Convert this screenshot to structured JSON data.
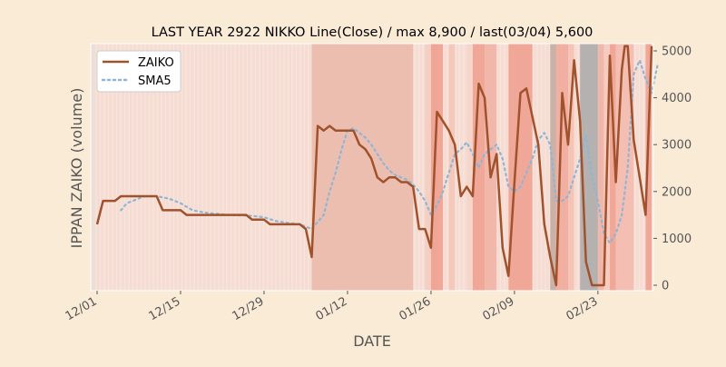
{
  "chart_data": {
    "type": "line",
    "title": "LAST YEAR 2922 NIKKO Line(Close) / max 8,900 / last(03/04) 5,600",
    "xlabel": "DATE",
    "ylabel": "IPPAN ZAIKO (volume)",
    "x_start": "12/01",
    "x_end": "03/04",
    "x_ticks": [
      {
        "label": "12/01",
        "day": 0
      },
      {
        "label": "12/15",
        "day": 14
      },
      {
        "label": "12/29",
        "day": 28
      },
      {
        "label": "01/12",
        "day": 42
      },
      {
        "label": "01/26",
        "day": 56
      },
      {
        "label": "02/09",
        "day": 70
      },
      {
        "label": "02/23",
        "day": 84
      }
    ],
    "ylim": [
      -100,
      5100
    ],
    "y_ticks": [
      0,
      1000,
      2000,
      3000,
      4000,
      5000
    ],
    "y_axis_side": "right",
    "grid": false,
    "legend_position": "top-left",
    "background_bands": true,
    "series": [
      {
        "name": "ZAIKO",
        "style": "solid",
        "color": "#a0522d",
        "points": [
          [
            0,
            1300
          ],
          [
            1,
            1800
          ],
          [
            3,
            1800
          ],
          [
            4,
            1900
          ],
          [
            10,
            1900
          ],
          [
            11,
            1600
          ],
          [
            14,
            1600
          ],
          [
            15,
            1500
          ],
          [
            25,
            1500
          ],
          [
            26,
            1400
          ],
          [
            28,
            1400
          ],
          [
            29,
            1300
          ],
          [
            34,
            1300
          ],
          [
            35,
            1200
          ],
          [
            36,
            600
          ],
          [
            37,
            3400
          ],
          [
            38,
            3300
          ],
          [
            39,
            3400
          ],
          [
            40,
            3300
          ],
          [
            43,
            3300
          ],
          [
            44,
            3000
          ],
          [
            45,
            2900
          ],
          [
            46,
            2700
          ],
          [
            47,
            2300
          ],
          [
            48,
            2200
          ],
          [
            49,
            2300
          ],
          [
            50,
            2300
          ],
          [
            51,
            2200
          ],
          [
            52,
            2200
          ],
          [
            53,
            2100
          ],
          [
            54,
            1200
          ],
          [
            55,
            1200
          ],
          [
            56,
            800
          ],
          [
            57,
            3700
          ],
          [
            58,
            3500
          ],
          [
            59,
            3300
          ],
          [
            60,
            3000
          ],
          [
            61,
            1900
          ],
          [
            62,
            2100
          ],
          [
            63,
            1900
          ],
          [
            64,
            4300
          ],
          [
            65,
            4000
          ],
          [
            66,
            2300
          ],
          [
            67,
            2800
          ],
          [
            68,
            800
          ],
          [
            69,
            200
          ],
          [
            70,
            2200
          ],
          [
            71,
            4100
          ],
          [
            72,
            4200
          ],
          [
            73,
            3600
          ],
          [
            74,
            3000
          ],
          [
            75,
            1300
          ],
          [
            76,
            600
          ],
          [
            77,
            0
          ],
          [
            78,
            4100
          ],
          [
            79,
            3000
          ],
          [
            80,
            4800
          ],
          [
            81,
            3500
          ],
          [
            82,
            500
          ],
          [
            83,
            0
          ],
          [
            85,
            0
          ],
          [
            86,
            4900
          ],
          [
            87,
            2200
          ],
          [
            88,
            4600
          ],
          [
            88.5,
            5100
          ],
          [
            89,
            5100
          ],
          [
            90,
            3100
          ],
          [
            91,
            2300
          ],
          [
            92,
            1500
          ],
          [
            93,
            5100
          ]
        ]
      },
      {
        "name": "SMA5",
        "style": "dotted",
        "color": "#8fb5d6",
        "points": [
          [
            4,
            1600
          ],
          [
            5,
            1750
          ],
          [
            6,
            1800
          ],
          [
            7,
            1850
          ],
          [
            8,
            1900
          ],
          [
            10,
            1900
          ],
          [
            12,
            1850
          ],
          [
            14,
            1750
          ],
          [
            16,
            1600
          ],
          [
            18,
            1550
          ],
          [
            22,
            1500
          ],
          [
            26,
            1480
          ],
          [
            28,
            1450
          ],
          [
            30,
            1370
          ],
          [
            32,
            1330
          ],
          [
            34,
            1300
          ],
          [
            36,
            1200
          ],
          [
            38,
            1500
          ],
          [
            39,
            2000
          ],
          [
            40,
            2400
          ],
          [
            41,
            2900
          ],
          [
            42,
            3300
          ],
          [
            43,
            3350
          ],
          [
            44,
            3250
          ],
          [
            45,
            3150
          ],
          [
            46,
            3000
          ],
          [
            47,
            2800
          ],
          [
            48,
            2600
          ],
          [
            49,
            2450
          ],
          [
            50,
            2350
          ],
          [
            52,
            2250
          ],
          [
            53,
            2150
          ],
          [
            54,
            2000
          ],
          [
            55,
            1800
          ],
          [
            56,
            1500
          ],
          [
            57,
            1700
          ],
          [
            58,
            2000
          ],
          [
            59,
            2400
          ],
          [
            60,
            2800
          ],
          [
            61,
            2900
          ],
          [
            62,
            3050
          ],
          [
            63,
            2800
          ],
          [
            64,
            2500
          ],
          [
            65,
            2800
          ],
          [
            66,
            2900
          ],
          [
            67,
            3000
          ],
          [
            68,
            2700
          ],
          [
            69,
            2100
          ],
          [
            70,
            2000
          ],
          [
            71,
            2100
          ],
          [
            72,
            2400
          ],
          [
            73,
            2700
          ],
          [
            74,
            3100
          ],
          [
            75,
            3250
          ],
          [
            76,
            3000
          ],
          [
            77,
            1800
          ],
          [
            78,
            1800
          ],
          [
            79,
            1900
          ],
          [
            80,
            2300
          ],
          [
            81,
            2700
          ],
          [
            82,
            3200
          ],
          [
            83,
            2300
          ],
          [
            84,
            1800
          ],
          [
            85,
            1100
          ],
          [
            86,
            900
          ],
          [
            87,
            1100
          ],
          [
            88,
            1500
          ],
          [
            89,
            2500
          ],
          [
            90,
            4500
          ],
          [
            91,
            4800
          ],
          [
            92,
            4400
          ],
          [
            93,
            4100
          ],
          [
            94,
            4700
          ]
        ]
      }
    ],
    "bands": [
      {
        "from": 36,
        "to": 53,
        "color": "#eab8a8"
      },
      {
        "from": 55,
        "to": 57,
        "color": "#f3ccc0"
      },
      {
        "from": 56,
        "to": 58,
        "color": "#ef9d8d"
      },
      {
        "from": 59,
        "to": 60,
        "color": "#f3c4b5"
      },
      {
        "from": 62,
        "to": 63,
        "color": "#f6d5c8"
      },
      {
        "from": 63,
        "to": 65,
        "color": "#ef9d8d"
      },
      {
        "from": 65,
        "to": 67,
        "color": "#f0b0a2"
      },
      {
        "from": 69,
        "to": 73,
        "color": "#ef9d8d"
      },
      {
        "from": 76,
        "to": 77,
        "color": "#c2a9a0"
      },
      {
        "from": 77,
        "to": 79,
        "color": "#f0a798"
      },
      {
        "from": 79,
        "to": 80,
        "color": "#f4c0b2"
      },
      {
        "from": 81,
        "to": 84,
        "color": "#a9a9a9"
      },
      {
        "from": 84,
        "to": 85,
        "color": "#f0b0a2"
      },
      {
        "from": 85,
        "to": 86,
        "color": "#f6c9bc"
      },
      {
        "from": 86,
        "to": 87,
        "color": "#ef9d8d"
      },
      {
        "from": 87,
        "to": 90,
        "color": "#f3b9ab"
      },
      {
        "from": 92,
        "to": 93,
        "color": "#ef9d8d"
      }
    ]
  }
}
